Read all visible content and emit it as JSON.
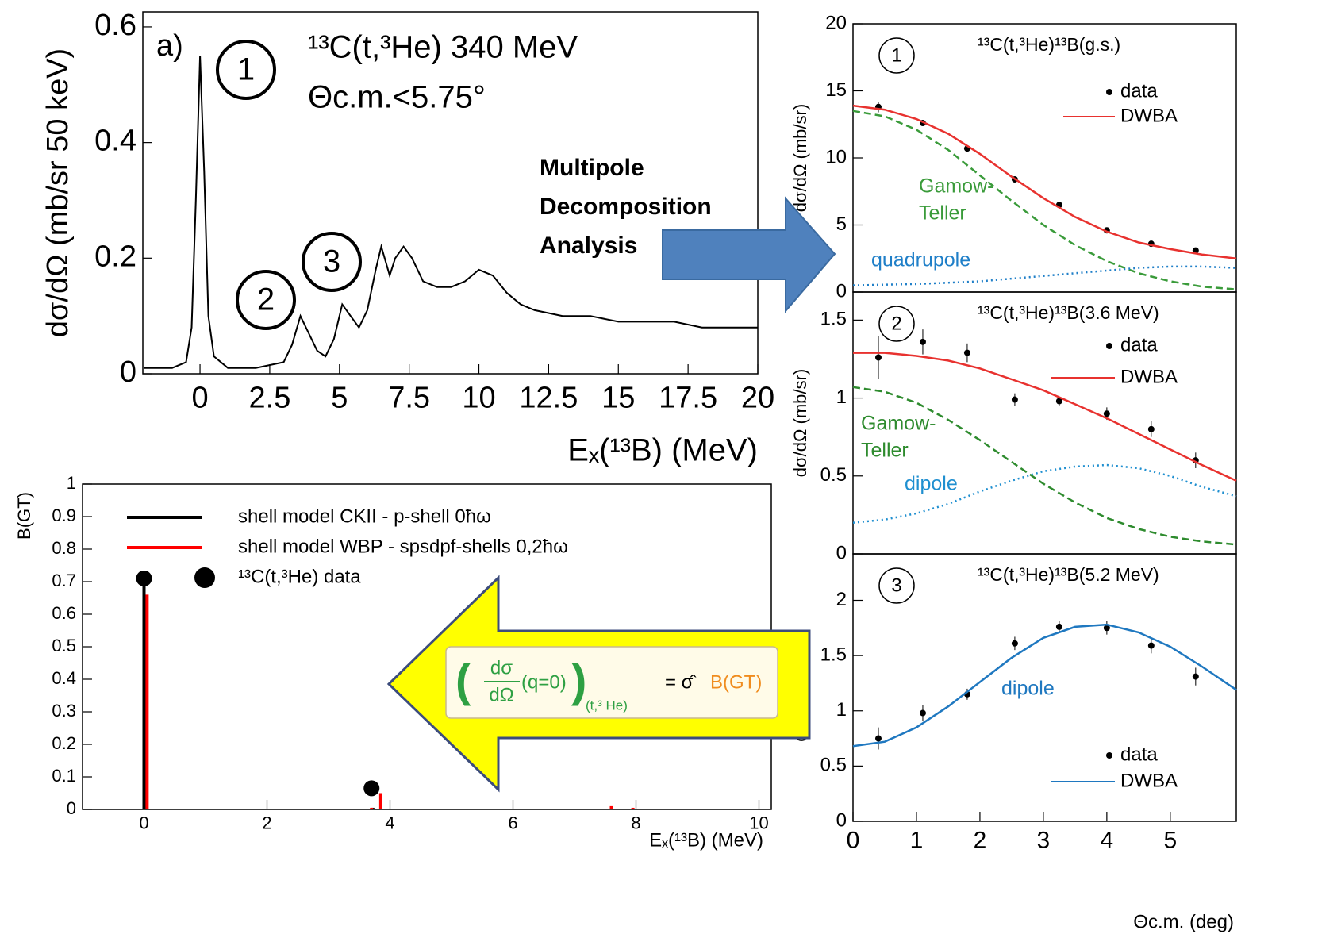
{
  "chart_data": [
    {
      "type": "line",
      "panel_label": "a)",
      "title": "¹³C(t,³He) 340 MeV",
      "subtitle": "Θc.m.<5.75°",
      "xlabel": "Eₓ(¹³B) (MeV)",
      "ylabel": "dσ/dΩ (mb/sr 50 keV)",
      "xlim": [
        -2.05,
        20
      ],
      "ylim": [
        0,
        0.626
      ],
      "xticks": [
        0,
        2.5,
        5,
        7.5,
        10,
        12.5,
        15,
        17.5,
        20
      ],
      "yticks": [
        0,
        0.2,
        0.4,
        0.6
      ],
      "peak_labels": [
        "1",
        "2",
        "3"
      ],
      "series": [
        {
          "color": "#000000",
          "x": [
            -2,
            -1,
            -0.5,
            -0.3,
            -0.15,
            0,
            0.15,
            0.3,
            0.5,
            1,
            2,
            3,
            3.3,
            3.6,
            3.9,
            4.2,
            4.5,
            4.8,
            5.1,
            5.4,
            5.7,
            6.0,
            6.3,
            6.5,
            6.8,
            7.0,
            7.3,
            7.6,
            8,
            8.5,
            9,
            9.5,
            10,
            10.5,
            11,
            11.5,
            12,
            13,
            14,
            15,
            16,
            17,
            18,
            19,
            20
          ],
          "values": [
            0.01,
            0.01,
            0.02,
            0.08,
            0.3,
            0.55,
            0.35,
            0.1,
            0.03,
            0.01,
            0.01,
            0.02,
            0.05,
            0.1,
            0.07,
            0.04,
            0.03,
            0.06,
            0.12,
            0.1,
            0.08,
            0.11,
            0.18,
            0.22,
            0.17,
            0.2,
            0.22,
            0.2,
            0.16,
            0.15,
            0.15,
            0.16,
            0.18,
            0.17,
            0.14,
            0.12,
            0.11,
            0.1,
            0.1,
            0.09,
            0.09,
            0.09,
            0.08,
            0.08,
            0.08
          ]
        }
      ]
    },
    {
      "type": "stem",
      "ylabel": "B(GT)",
      "xlabel": "Eₓ(¹³B) (MeV)",
      "xlim": [
        -1,
        10.2
      ],
      "ylim": [
        0,
        1
      ],
      "xticks": [
        0,
        2,
        4,
        6,
        8,
        10
      ],
      "yticks": [
        0,
        0.1,
        0.2,
        0.3,
        0.4,
        0.5,
        0.6,
        0.7,
        0.8,
        0.9,
        1
      ],
      "series": [
        {
          "name": "shell model CKII - p-shell 0ħω",
          "kind": "stem",
          "color": "#000000",
          "x": [
            0,
            3.72
          ],
          "values": [
            0.69,
            0.005
          ]
        },
        {
          "name": "shell model WBP - spsdpf-shells 0,2ħω",
          "kind": "stem",
          "color": "#ff0000",
          "x": [
            0.05,
            3.7,
            3.85,
            7.6,
            7.95
          ],
          "values": [
            0.66,
            0.005,
            0.05,
            0.01,
            0.005
          ]
        },
        {
          "name": "¹³C(t,³He) data",
          "kind": "points",
          "color": "#000000",
          "x": [
            0,
            3.7
          ],
          "values": [
            0.71,
            0.065
          ]
        }
      ]
    },
    {
      "type": "scatter",
      "circle_label": "1",
      "title": "¹³C(t,³He)¹³B(g.s.)",
      "ylabel": "dσ/dΩ (mb/sr)",
      "xlim": [
        0,
        6.04
      ],
      "ylim": [
        0,
        20
      ],
      "yticks": [
        0,
        5,
        10,
        15,
        20
      ],
      "series": [
        {
          "name": "data",
          "kind": "points",
          "color": "#000000",
          "x": [
            0.4,
            1.1,
            1.8,
            2.55,
            3.25,
            4.0,
            4.7,
            5.4
          ],
          "values": [
            13.8,
            12.6,
            10.7,
            8.4,
            6.5,
            4.6,
            3.6,
            3.1
          ],
          "errors": [
            0.4,
            0.2,
            0.15,
            0.15,
            0.12,
            0.12,
            0.1,
            0.1
          ]
        },
        {
          "name": "DWBA",
          "kind": "line",
          "color": "#e8322f",
          "x": [
            0,
            0.5,
            1,
            1.5,
            2,
            2.5,
            3,
            3.5,
            4,
            4.5,
            5,
            5.5,
            6.04
          ],
          "values": [
            13.9,
            13.6,
            12.9,
            11.8,
            10.3,
            8.6,
            7.0,
            5.6,
            4.5,
            3.7,
            3.2,
            2.8,
            2.5
          ]
        },
        {
          "label": [
            "Gamow-",
            "Teller"
          ],
          "kind": "line",
          "style": "dashed",
          "color": "#3a9b3a",
          "x": [
            0,
            0.5,
            1,
            1.5,
            2,
            2.5,
            3,
            3.5,
            4,
            4.5,
            5,
            5.5,
            6.04
          ],
          "values": [
            13.5,
            13.1,
            12.1,
            10.6,
            8.7,
            6.8,
            5.0,
            3.5,
            2.3,
            1.4,
            0.8,
            0.4,
            0.2
          ]
        },
        {
          "label": [
            "quadrupole"
          ],
          "kind": "line",
          "style": "dotted",
          "color": "#1f7fc8",
          "x": [
            0,
            0.5,
            1,
            1.5,
            2,
            2.5,
            3,
            3.5,
            4,
            4.5,
            5,
            5.5,
            6.04
          ],
          "values": [
            0.5,
            0.55,
            0.6,
            0.7,
            0.8,
            1.0,
            1.2,
            1.4,
            1.6,
            1.8,
            1.9,
            1.9,
            1.8
          ]
        }
      ]
    },
    {
      "type": "scatter",
      "circle_label": "2",
      "title": "¹³C(t,³He)¹³B(3.6 MeV)",
      "ylabel": "dσ/dΩ (mb/sr)",
      "xlim": [
        0,
        6.04
      ],
      "ylim": [
        0,
        1.68
      ],
      "yticks": [
        0,
        0.5,
        1,
        1.5
      ],
      "series": [
        {
          "name": "data",
          "kind": "points",
          "color": "#000000",
          "x": [
            0.4,
            1.1,
            1.8,
            2.55,
            3.25,
            4.0,
            4.7,
            5.4
          ],
          "values": [
            1.26,
            1.36,
            1.29,
            0.99,
            0.98,
            0.9,
            0.8,
            0.6
          ],
          "errors": [
            0.14,
            0.08,
            0.06,
            0.04,
            0.03,
            0.04,
            0.05,
            0.05
          ]
        },
        {
          "name": "DWBA",
          "kind": "line",
          "color": "#e8322f",
          "x": [
            0,
            0.5,
            1,
            1.5,
            2,
            2.5,
            3,
            3.5,
            4,
            4.5,
            5,
            5.5,
            6.04
          ],
          "values": [
            1.29,
            1.29,
            1.27,
            1.24,
            1.19,
            1.12,
            1.05,
            0.96,
            0.87,
            0.77,
            0.67,
            0.57,
            0.47
          ]
        },
        {
          "label": [
            "Gamow-",
            "Teller"
          ],
          "kind": "line",
          "style": "dashed",
          "color": "#2e8b2e",
          "x": [
            0,
            0.5,
            1,
            1.5,
            2,
            2.5,
            3,
            3.5,
            4,
            4.5,
            5,
            5.5,
            6.04
          ],
          "values": [
            1.07,
            1.04,
            0.97,
            0.86,
            0.73,
            0.59,
            0.45,
            0.33,
            0.23,
            0.16,
            0.11,
            0.08,
            0.06
          ]
        },
        {
          "label": [
            "dipole"
          ],
          "kind": "line",
          "style": "dotted",
          "color": "#1f8fd0",
          "x": [
            0,
            0.5,
            1,
            1.5,
            2,
            2.5,
            3,
            3.5,
            4,
            4.5,
            5,
            5.5,
            6.04
          ],
          "values": [
            0.2,
            0.22,
            0.26,
            0.32,
            0.4,
            0.47,
            0.53,
            0.56,
            0.57,
            0.55,
            0.5,
            0.43,
            0.37
          ]
        }
      ]
    },
    {
      "type": "scatter",
      "circle_label": "3",
      "title": "¹³C(t,³He)¹³B(5.2 MeV)",
      "ylabel": "dσ/dΩ (mb/sr)",
      "xlabel": "Θc.m. (deg)",
      "xlim": [
        0,
        6.04
      ],
      "ylim": [
        0,
        2.42
      ],
      "xticks": [
        0,
        1,
        2,
        3,
        4,
        5
      ],
      "yticks": [
        0,
        0.5,
        1,
        1.5,
        2
      ],
      "series": [
        {
          "name": "data",
          "kind": "points",
          "color": "#000000",
          "x": [
            0.4,
            1.1,
            1.8,
            2.55,
            3.25,
            4.0,
            4.7,
            5.4
          ],
          "values": [
            0.75,
            0.98,
            1.15,
            1.61,
            1.76,
            1.75,
            1.59,
            1.31
          ],
          "errors": [
            0.1,
            0.07,
            0.05,
            0.06,
            0.05,
            0.06,
            0.07,
            0.08
          ]
        },
        {
          "name": "DWBA",
          "label": [
            "dipole"
          ],
          "kind": "line",
          "color": "#1f78c0",
          "x": [
            0,
            0.5,
            1,
            1.5,
            2,
            2.5,
            3,
            3.5,
            4,
            4.5,
            5,
            5.5,
            6.04
          ],
          "values": [
            0.68,
            0.72,
            0.85,
            1.04,
            1.26,
            1.48,
            1.66,
            1.76,
            1.78,
            1.71,
            1.58,
            1.4,
            1.19
          ]
        }
      ]
    }
  ],
  "annotations": {
    "arrow_text": [
      "Multipole",
      "Decomposition",
      "Analysis"
    ],
    "formula": {
      "open": "(",
      "numerator": "dσ",
      "denominator": "dΩ",
      "argument": "(q=0)",
      "close": ")",
      "subscript": "(t,³ He)",
      "equals": "= σ̂",
      "quantity": "B(GT)"
    }
  }
}
